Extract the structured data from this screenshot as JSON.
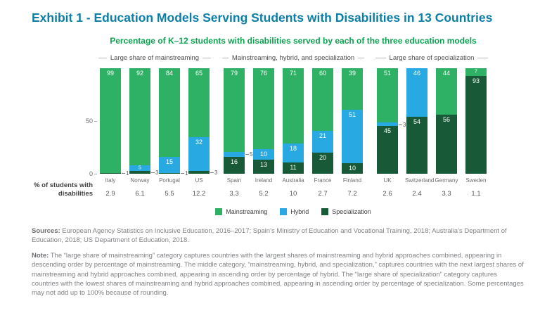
{
  "page": {
    "title": "Exhibit 1 - Education Models Serving Students with Disabilities in 13 Countries"
  },
  "chart_data": {
    "type": "bar",
    "stacked": true,
    "title": "Percentage of K–12 students with disabilities served by each of the three education models",
    "ylim": [
      0,
      100
    ],
    "yticks": [
      50,
      0
    ],
    "grid": false,
    "legend_position": "bottom",
    "row_label": "% of students with disabilities",
    "series": [
      {
        "name": "Mainstreaming",
        "key": "mainstreaming",
        "color": "#2eb164"
      },
      {
        "name": "Hybrid",
        "key": "hybrid",
        "color": "#29a9e1"
      },
      {
        "name": "Specialization",
        "key": "specialization",
        "color": "#185a38"
      }
    ],
    "groups": [
      {
        "label": "Large share of mainstreaming",
        "countries": [
          {
            "name": "Italy",
            "pct_students": "2.9",
            "mainstreaming": 99,
            "hybrid": 0,
            "specialization": 1,
            "outside": [
              "specialization"
            ]
          },
          {
            "name": "Norway",
            "pct_students": "6.1",
            "mainstreaming": 92,
            "hybrid": 5,
            "specialization": 3,
            "outside": [
              "specialization"
            ]
          },
          {
            "name": "Portugal",
            "pct_students": "5.5",
            "mainstreaming": 84,
            "hybrid": 15,
            "specialization": 1,
            "outside": [
              "specialization"
            ]
          },
          {
            "name": "US",
            "pct_students": "12.2",
            "mainstreaming": 65,
            "hybrid": 32,
            "specialization": 3,
            "outside": [
              "specialization"
            ]
          }
        ]
      },
      {
        "label": "Mainstreaming, hybrid, and specialization",
        "countries": [
          {
            "name": "Spain",
            "pct_students": "3.3",
            "mainstreaming": 79,
            "hybrid": 5,
            "specialization": 16,
            "outside": [
              "hybrid"
            ]
          },
          {
            "name": "Ireland",
            "pct_students": "5.2",
            "mainstreaming": 76,
            "hybrid": 10,
            "specialization": 13
          },
          {
            "name": "Australia",
            "pct_students": "10",
            "mainstreaming": 71,
            "hybrid": 18,
            "specialization": 11
          },
          {
            "name": "France",
            "pct_students": "2.7",
            "mainstreaming": 60,
            "hybrid": 21,
            "specialization": 20
          },
          {
            "name": "Finland",
            "pct_students": "7.2",
            "mainstreaming": 39,
            "hybrid": 51,
            "specialization": 10
          }
        ]
      },
      {
        "label": "Large share of specialization",
        "countries": [
          {
            "name": "UK",
            "pct_students": "2.6",
            "mainstreaming": 51,
            "hybrid": 3,
            "specialization": 45,
            "outside": [
              "hybrid"
            ]
          },
          {
            "name": "Switzerland",
            "pct_students": "2.4",
            "mainstreaming": 0,
            "hybrid": 46,
            "specialization": 54
          },
          {
            "name": "Germany",
            "pct_students": "3.3",
            "mainstreaming": 44,
            "hybrid": 0,
            "specialization": 56
          },
          {
            "name": "Sweden",
            "pct_students": "1.1",
            "mainstreaming": 7,
            "hybrid": 0,
            "specialization": 93
          }
        ]
      }
    ]
  },
  "footer": {
    "sources_label": "Sources:",
    "sources_text": "European Agency Statistics on Inclusive Education, 2016–2017; Spain’s Ministry of Education and Vocational Training, 2018; Australia’s Department of Education, 2018; US Department of Education, 2018.",
    "note_label": "Note:",
    "note_text": "The “large share of mainstreaming” category captures countries with the largest shares of mainstreaming and hybrid approaches combined, appearing in descending order by percentage of mainstreaming. The middle category, “mainstreaming, hybrid, and specialization,” captures countries with the next largest shares of mainstreaming and hybrid approaches combined, appearing in ascending order by percentage of hybrid. The “large share of specialization” category captures countries with the lowest shares of mainstreaming and hybrid approaches combined, appearing in ascending order by percentage of specialization. Some percentages may not add up to 100% because of rounding."
  }
}
